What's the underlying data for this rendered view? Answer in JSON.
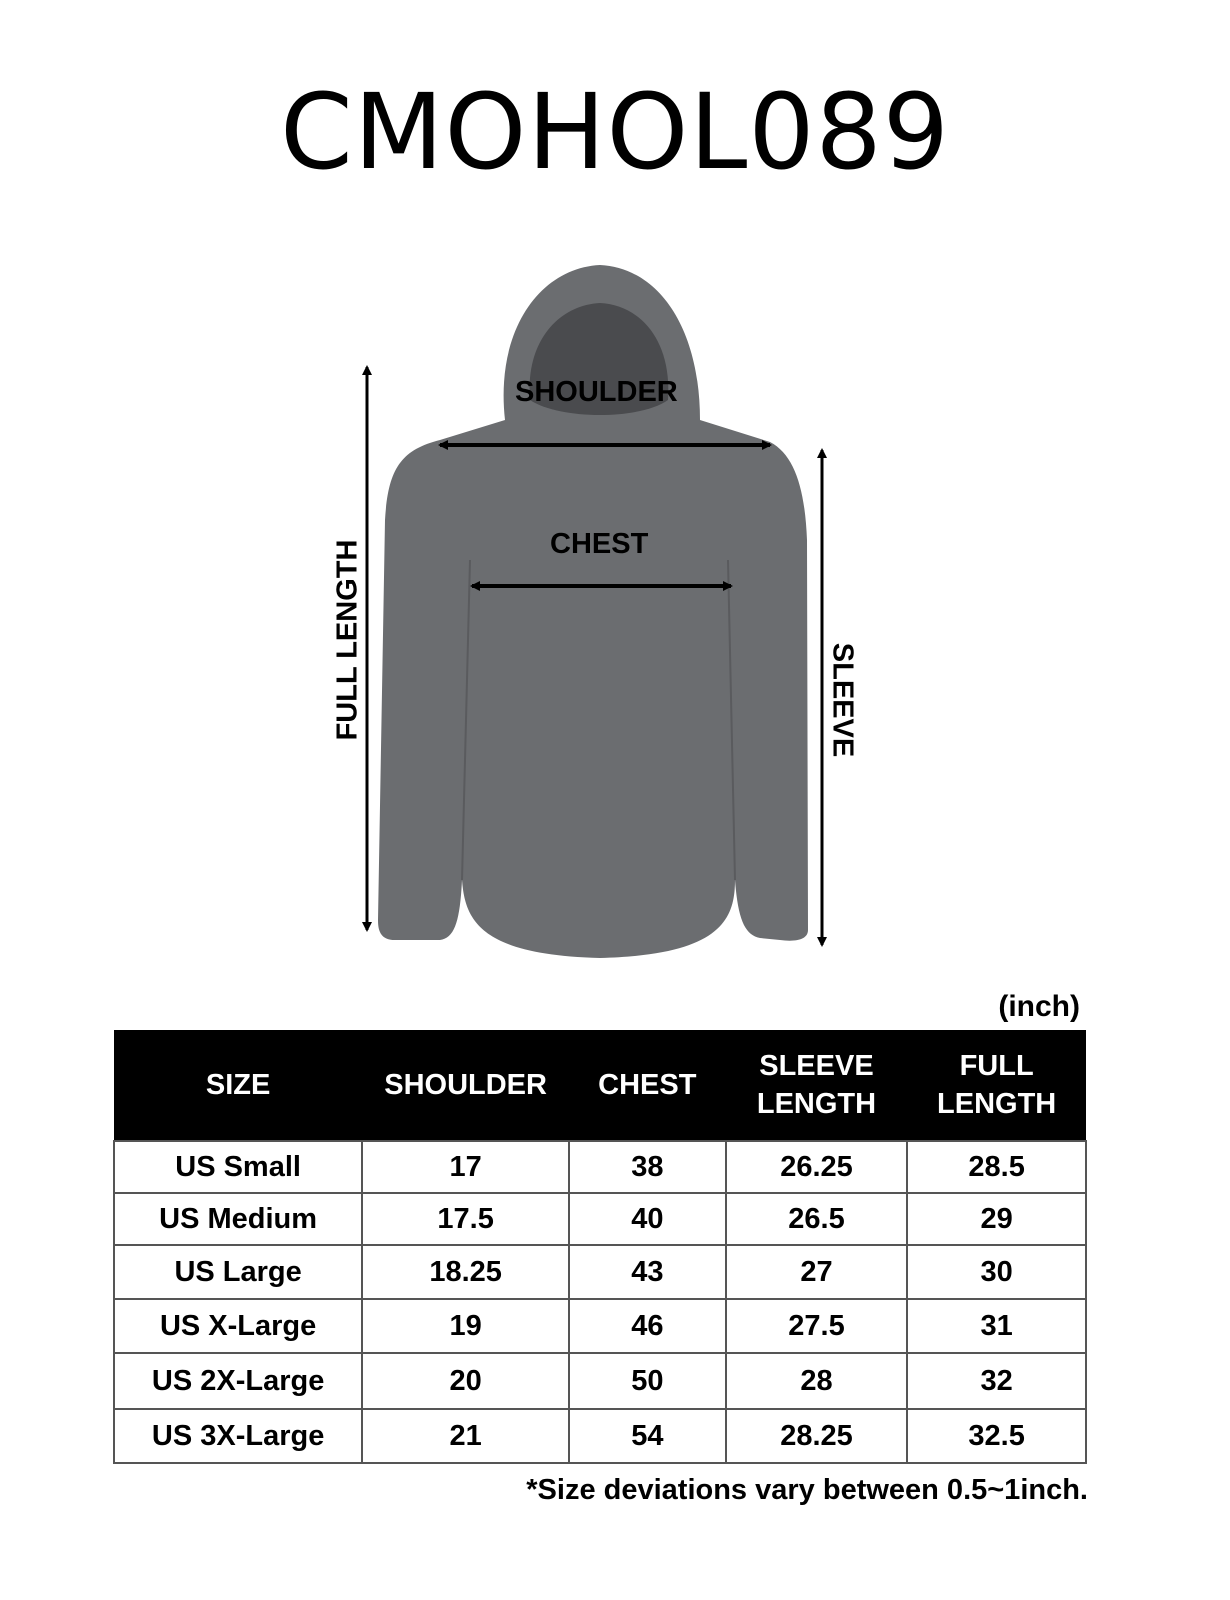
{
  "title": "CMOHOL089",
  "diagram": {
    "labels": {
      "shoulder": "SHOULDER",
      "chest": "CHEST",
      "full_length": "FULL LENGTH",
      "sleeve": "SLEEVE"
    },
    "garment_color": "#6b6d70"
  },
  "unit": "(inch)",
  "table": {
    "headers": [
      "SIZE",
      "SHOULDER",
      "CHEST",
      "SLEEVE LENGTH",
      "FULL LENGTH"
    ],
    "header_lines": [
      [
        "SIZE"
      ],
      [
        "SHOULDER"
      ],
      [
        "CHEST"
      ],
      [
        "SLEEVE",
        "LENGTH"
      ],
      [
        "FULL",
        "LENGTH"
      ]
    ],
    "rows": [
      [
        "US Small",
        "17",
        "38",
        "26.25",
        "28.5"
      ],
      [
        "US Medium",
        "17.5",
        "40",
        "26.5",
        "29"
      ],
      [
        "US Large",
        "18.25",
        "43",
        "27",
        "30"
      ],
      [
        "US X-Large",
        "19",
        "46",
        "27.5",
        "31"
      ],
      [
        "US 2X-Large",
        "20",
        "50",
        "28",
        "32"
      ],
      [
        "US 3X-Large",
        "21",
        "54",
        "28.25",
        "32.5"
      ]
    ]
  },
  "footnote": "*Size deviations vary between 0.5~1inch."
}
